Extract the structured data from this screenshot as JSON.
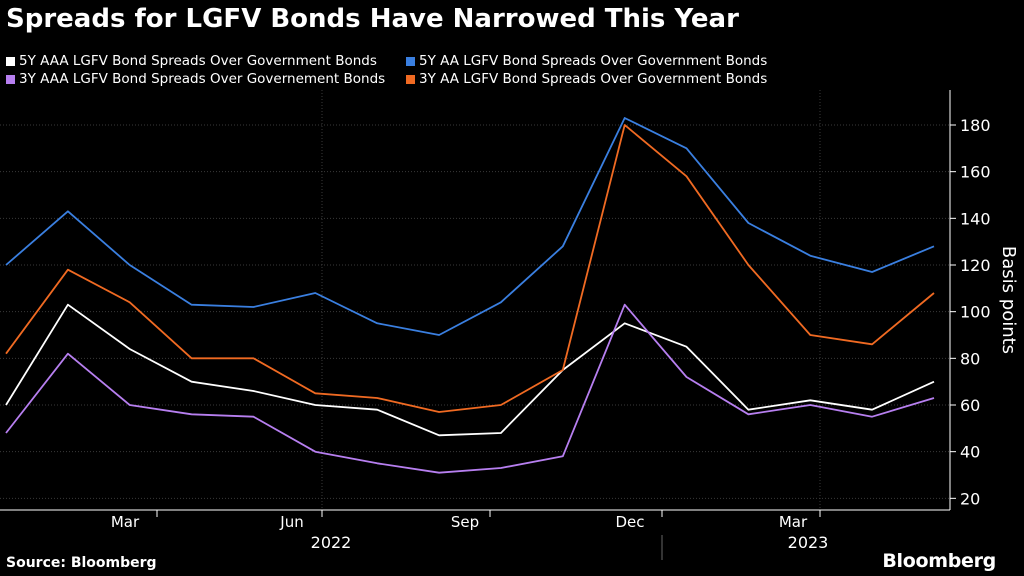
{
  "title": "Spreads for LGFV Bonds Have Narrowed This Year",
  "source": "Source: Bloomberg",
  "brand": "Bloomberg",
  "chart_data": {
    "type": "line",
    "title": "Spreads for LGFV Bonds Have Narrowed This Year",
    "ylabel": "Basis points",
    "ylim": [
      15,
      195
    ],
    "yticks": [
      20,
      40,
      60,
      80,
      100,
      120,
      140,
      160,
      180
    ],
    "x_months": [
      "Mar",
      "Jun",
      "Sep",
      "Dec",
      "Mar"
    ],
    "x_years": [
      "2022",
      "2023"
    ],
    "grid": true,
    "legend_position": "top",
    "x": [
      "2022-02",
      "2022-03",
      "2022-04",
      "2022-05",
      "2022-06",
      "2022-07",
      "2022-08",
      "2022-09",
      "2022-10",
      "2022-11",
      "2022-12",
      "2023-01",
      "2023-02",
      "2023-03",
      "2023-04",
      "2023-05"
    ],
    "series": [
      {
        "name": "5Y AAA LGFV Bond Spreads Over Government Bonds",
        "color": "#ffffff",
        "values": [
          60,
          103,
          84,
          70,
          66,
          60,
          58,
          47,
          48,
          75,
          95,
          85,
          58,
          62,
          58,
          70
        ]
      },
      {
        "name": "5Y AA LGFV Bond Spreads Over Government Bonds",
        "color": "#3a7fe0",
        "values": [
          120,
          143,
          120,
          103,
          102,
          108,
          95,
          90,
          104,
          128,
          183,
          170,
          138,
          124,
          117,
          128
        ]
      },
      {
        "name": "3Y AAA LGFV Bond Spreads Over Governement Bonds",
        "color": "#b77ff0",
        "values": [
          48,
          82,
          60,
          56,
          55,
          40,
          35,
          31,
          33,
          38,
          103,
          72,
          56,
          60,
          55,
          63
        ]
      },
      {
        "name": "3Y AA LGFV Bond Spreads Over Government Bonds",
        "color": "#f06a22",
        "values": [
          82,
          118,
          104,
          80,
          80,
          65,
          63,
          57,
          60,
          75,
          180,
          158,
          120,
          90,
          86,
          108
        ]
      }
    ]
  }
}
